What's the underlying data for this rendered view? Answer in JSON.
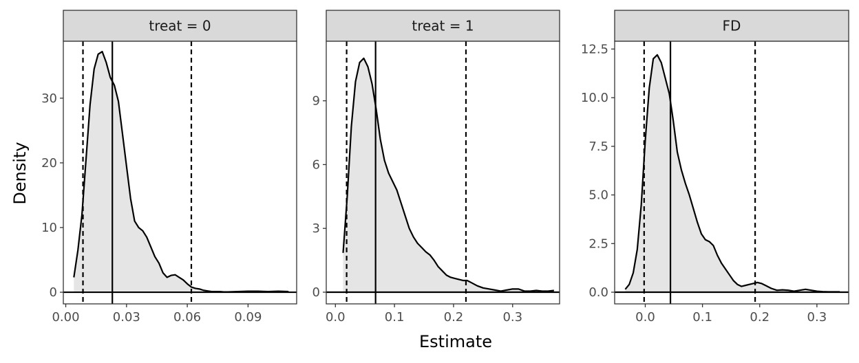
{
  "chart_data": {
    "type": "area",
    "xlabel": "Estimate",
    "ylabel": "Density",
    "grid": false,
    "colors": {
      "fill": "#e5e5e5",
      "line": "#000000",
      "strip_bg": "#d9d9d9",
      "strip_border": "#333333",
      "panel_border": "#333333",
      "tick_text": "#4d4d4d"
    },
    "panels": [
      {
        "title": "treat = 0",
        "xlim": [
          -0.0012,
          0.114
        ],
        "ylim": [
          -1.8,
          38.8
        ],
        "xticks": [
          0,
          0.03,
          0.06,
          0.09
        ],
        "xtick_labels": [
          "0.00",
          "0.03",
          "0.06",
          "0.09"
        ],
        "yticks": [
          0,
          10,
          20,
          30
        ],
        "ytick_labels": [
          "0",
          "10",
          "20",
          "30"
        ],
        "median": 0.023,
        "ci": [
          0.0085,
          0.062
        ],
        "x": [
          0.004,
          0.006,
          0.008,
          0.01,
          0.012,
          0.014,
          0.016,
          0.018,
          0.02,
          0.022,
          0.024,
          0.026,
          0.028,
          0.03,
          0.032,
          0.034,
          0.036,
          0.038,
          0.04,
          0.042,
          0.044,
          0.046,
          0.048,
          0.05,
          0.052,
          0.054,
          0.056,
          0.058,
          0.06,
          0.062,
          0.064,
          0.066,
          0.068,
          0.07,
          0.072,
          0.074,
          0.076,
          0.078,
          0.08,
          0.085,
          0.09,
          0.095,
          0.1,
          0.105,
          0.11
        ],
        "y": [
          2.3,
          6.5,
          12.0,
          20.5,
          29.0,
          34.5,
          36.8,
          37.2,
          35.5,
          33.2,
          32.0,
          29.5,
          24.5,
          19.5,
          14.5,
          11.0,
          10.0,
          9.5,
          8.5,
          7.0,
          5.5,
          4.5,
          3.0,
          2.3,
          2.6,
          2.7,
          2.3,
          1.9,
          1.3,
          0.8,
          0.6,
          0.5,
          0.3,
          0.2,
          0.1,
          0.1,
          0.1,
          0.05,
          0.05,
          0.1,
          0.15,
          0.15,
          0.1,
          0.15,
          0.1
        ]
      },
      {
        "title": "treat = 1",
        "xlim": [
          -0.0155,
          0.3795
        ],
        "ylim": [
          -0.55,
          11.8
        ],
        "xticks": [
          0,
          0.1,
          0.2,
          0.3
        ],
        "xtick_labels": [
          "0.0",
          "0.1",
          "0.2",
          "0.3"
        ],
        "yticks": [
          0,
          3,
          6,
          9
        ],
        "ytick_labels": [
          "0",
          "3",
          "6",
          "9"
        ],
        "median": 0.068,
        "ci": [
          0.019,
          0.221
        ],
        "x": [
          0.013,
          0.02,
          0.027,
          0.034,
          0.041,
          0.048,
          0.055,
          0.062,
          0.069,
          0.076,
          0.083,
          0.09,
          0.097,
          0.104,
          0.111,
          0.118,
          0.125,
          0.132,
          0.139,
          0.146,
          0.153,
          0.16,
          0.167,
          0.174,
          0.181,
          0.188,
          0.195,
          0.202,
          0.209,
          0.216,
          0.223,
          0.23,
          0.24,
          0.25,
          0.26,
          0.27,
          0.28,
          0.29,
          0.3,
          0.31,
          0.32,
          0.33,
          0.34,
          0.35,
          0.36,
          0.37
        ],
        "y": [
          1.85,
          4.5,
          7.8,
          9.9,
          10.8,
          11.0,
          10.6,
          9.8,
          8.6,
          7.2,
          6.2,
          5.6,
          5.2,
          4.8,
          4.2,
          3.6,
          3.0,
          2.6,
          2.3,
          2.1,
          1.9,
          1.75,
          1.5,
          1.2,
          1.0,
          0.8,
          0.7,
          0.65,
          0.6,
          0.55,
          0.55,
          0.45,
          0.3,
          0.2,
          0.15,
          0.1,
          0.05,
          0.1,
          0.15,
          0.15,
          0.05,
          0.05,
          0.08,
          0.05,
          0.05,
          0.08
        ]
      },
      {
        "title": "FD",
        "xlim": [
          -0.0535,
          0.3555
        ],
        "ylim": [
          -0.6,
          12.9
        ],
        "xticks": [
          0,
          0.1,
          0.2,
          0.3
        ],
        "xtick_labels": [
          "0.0",
          "0.1",
          "0.2",
          "0.3"
        ],
        "yticks": [
          0,
          2.5,
          5,
          7.5,
          10,
          12.5
        ],
        "ytick_labels": [
          "0.0",
          "2.5",
          "5.0",
          "7.5",
          "10.0",
          "12.5"
        ],
        "median": 0.044,
        "ci": [
          -0.002,
          0.192
        ],
        "x": [
          -0.035,
          -0.028,
          -0.021,
          -0.014,
          -0.007,
          0.0,
          0.007,
          0.014,
          0.021,
          0.028,
          0.035,
          0.042,
          0.049,
          0.056,
          0.063,
          0.07,
          0.077,
          0.084,
          0.091,
          0.098,
          0.105,
          0.112,
          0.119,
          0.126,
          0.133,
          0.14,
          0.147,
          0.154,
          0.161,
          0.168,
          0.175,
          0.182,
          0.189,
          0.196,
          0.203,
          0.21,
          0.22,
          0.23,
          0.24,
          0.25,
          0.26,
          0.27,
          0.28,
          0.29,
          0.3,
          0.31,
          0.32,
          0.33,
          0.34
        ],
        "y": [
          0.15,
          0.4,
          1.0,
          2.2,
          4.5,
          7.8,
          10.5,
          12.0,
          12.2,
          11.8,
          11.0,
          10.2,
          8.8,
          7.2,
          6.3,
          5.6,
          5.0,
          4.3,
          3.6,
          3.0,
          2.7,
          2.6,
          2.4,
          1.9,
          1.5,
          1.2,
          0.9,
          0.6,
          0.4,
          0.3,
          0.35,
          0.4,
          0.45,
          0.5,
          0.45,
          0.35,
          0.2,
          0.1,
          0.12,
          0.1,
          0.05,
          0.1,
          0.15,
          0.1,
          0.05,
          0.03,
          0.02,
          0.02,
          0.02
        ]
      }
    ]
  }
}
